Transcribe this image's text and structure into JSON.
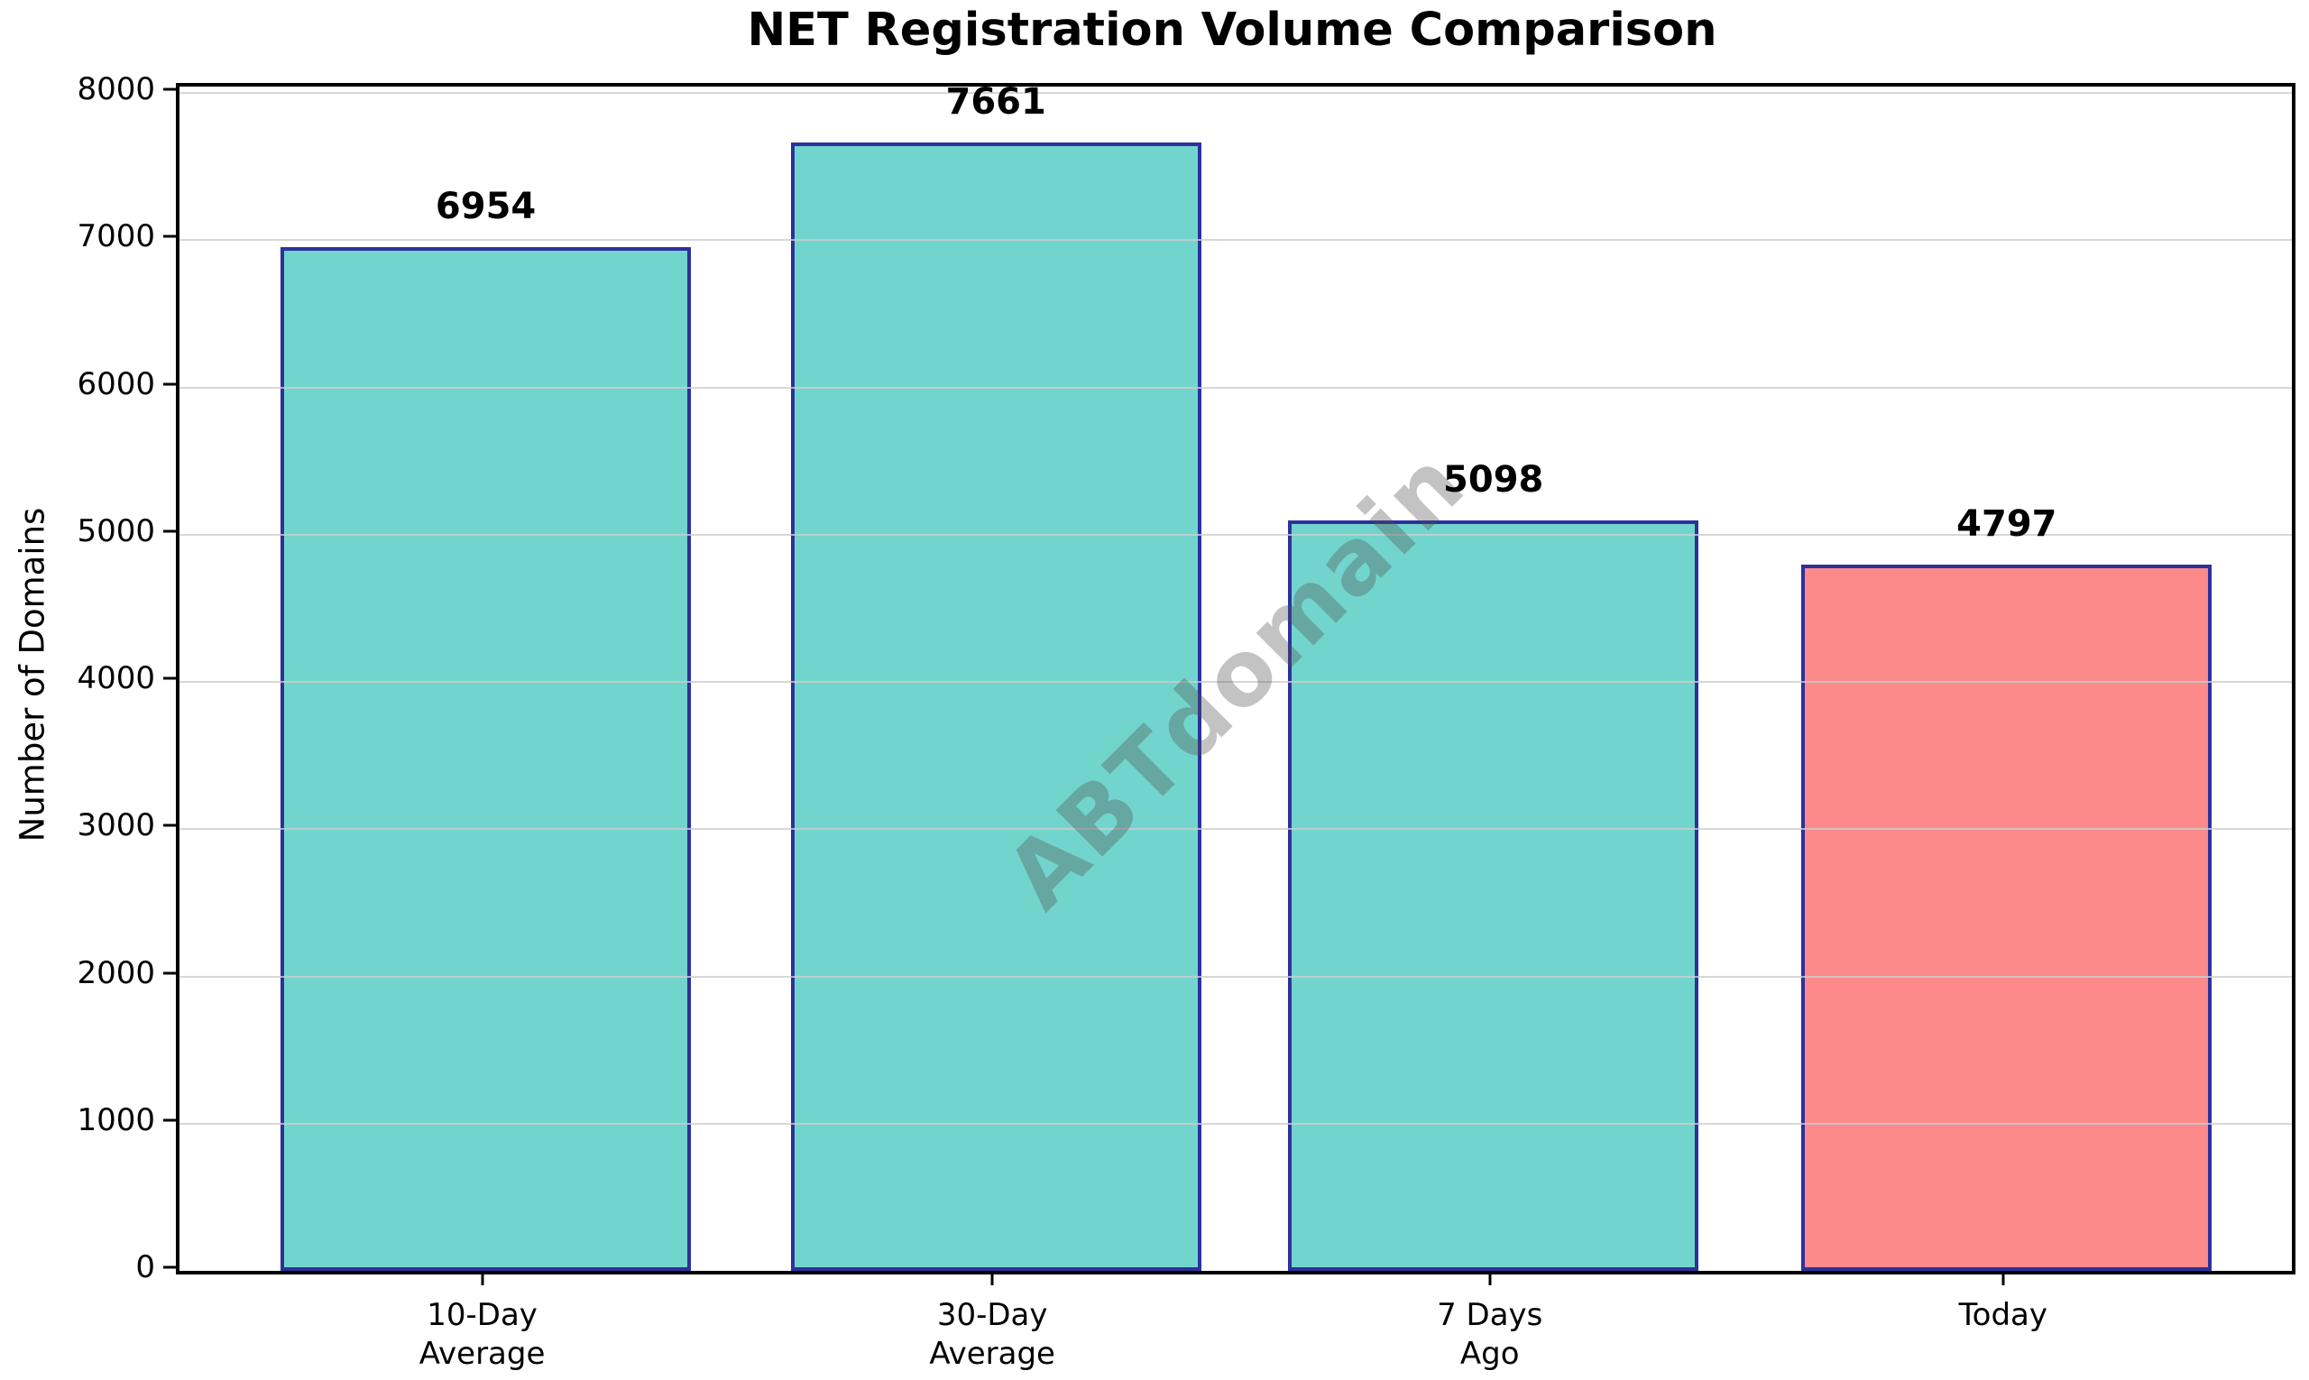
{
  "title": "NET Registration Volume Comparison",
  "watermark_text": "ABTdomain",
  "chart_data": {
    "type": "bar",
    "title": "NET Registration Volume Comparison",
    "xlabel": "",
    "ylabel": "Number of Domains",
    "categories": [
      "10-Day\nAverage",
      "30-Day\nAverage",
      "7 Days\nAgo",
      "Today"
    ],
    "values": [
      6954,
      7661,
      5098,
      4797
    ],
    "value_labels": [
      "6954",
      "7661",
      "5098",
      "4797"
    ],
    "bar_colors": [
      "#72D5CD",
      "#72D5CD",
      "#72D5CD",
      "#FC8A8A"
    ],
    "bar_edge_color": "#2C319B",
    "ylim": [
      0,
      8000
    ],
    "yticks": [
      0,
      1000,
      2000,
      3000,
      4000,
      5000,
      6000,
      7000,
      8000
    ],
    "ytick_labels": [
      "0",
      "1000",
      "2000",
      "3000",
      "4000",
      "5000",
      "6000",
      "7000",
      "8000"
    ],
    "grid": true,
    "grid_axis": "y",
    "grid_above_bars": true,
    "legend": "none",
    "watermark": "ABTdomain",
    "watermark_color": "#808080",
    "watermark_rotation_deg": 45
  }
}
